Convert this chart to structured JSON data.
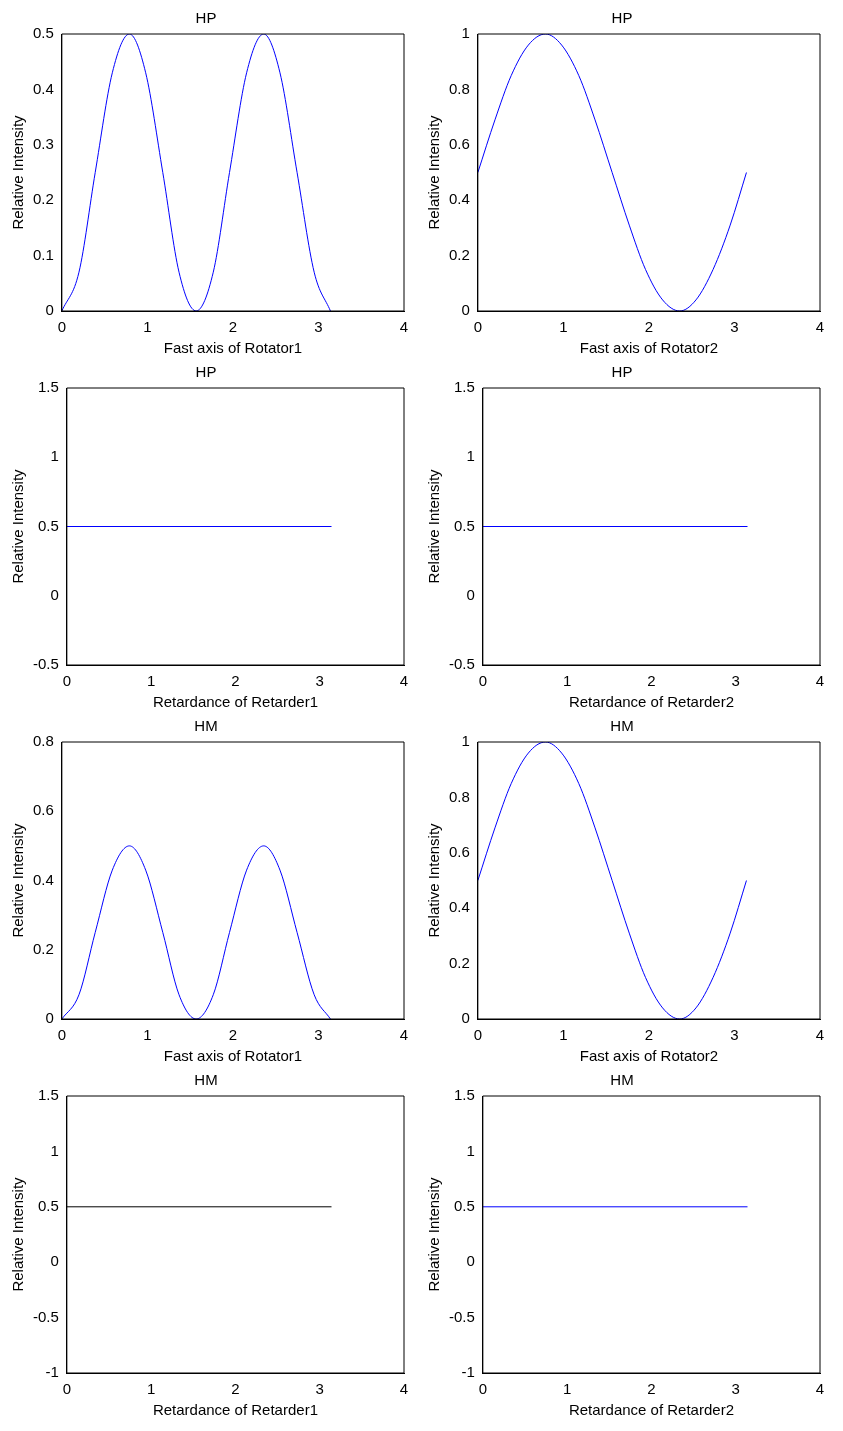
{
  "chart_data": [
    {
      "type": "line",
      "title": "HP",
      "xlabel": "Fast axis of Rotator1",
      "ylabel": "Relative Intensity",
      "x": [
        0,
        0.2,
        0.39,
        0.59,
        0.79,
        0.98,
        1.18,
        1.37,
        1.57,
        1.77,
        1.96,
        2.16,
        2.36,
        2.55,
        2.75,
        2.95,
        3.14
      ],
      "series": [
        {
          "color": "#0000ff",
          "values": [
            0,
            0.07,
            0.25,
            0.43,
            0.5,
            0.43,
            0.25,
            0.07,
            0,
            0.07,
            0.25,
            0.43,
            0.5,
            0.43,
            0.25,
            0.07,
            0
          ]
        }
      ],
      "xlim": [
        0,
        4
      ],
      "xticks": [
        0,
        1,
        2,
        3,
        4
      ],
      "ylim": [
        0,
        0.5
      ],
      "yticks": [
        0,
        0.1,
        0.2,
        0.3,
        0.4,
        0.5
      ]
    },
    {
      "type": "line",
      "title": "HP",
      "xlabel": "Fast axis of Rotator2",
      "ylabel": "Relative Intensity",
      "x": [
        0,
        0.2,
        0.39,
        0.59,
        0.79,
        0.98,
        1.18,
        1.37,
        1.57,
        1.77,
        1.96,
        2.16,
        2.36,
        2.55,
        2.75,
        2.95,
        3.14
      ],
      "series": [
        {
          "color": "#0000ff",
          "values": [
            0.5,
            0.69,
            0.85,
            0.96,
            1,
            0.96,
            0.85,
            0.69,
            0.5,
            0.31,
            0.15,
            0.04,
            0,
            0.04,
            0.15,
            0.31,
            0.5
          ]
        }
      ],
      "xlim": [
        0,
        4
      ],
      "xticks": [
        0,
        1,
        2,
        3,
        4
      ],
      "ylim": [
        0,
        1
      ],
      "yticks": [
        0,
        0.2,
        0.4,
        0.6,
        0.8,
        1
      ]
    },
    {
      "type": "line",
      "title": "HP",
      "xlabel": "Retardance of Retarder1",
      "ylabel": "Relative Intensity",
      "x": [
        0,
        3.14
      ],
      "series": [
        {
          "color": "#0000ff",
          "values": [
            0.5,
            0.5
          ]
        }
      ],
      "xlim": [
        0,
        4
      ],
      "xticks": [
        0,
        1,
        2,
        3,
        4
      ],
      "ylim": [
        -0.5,
        1.5
      ],
      "yticks": [
        -0.5,
        0,
        0.5,
        1,
        1.5
      ]
    },
    {
      "type": "line",
      "title": "HP",
      "xlabel": "Retardance of Retarder2",
      "ylabel": "Relative Intensity",
      "x": [
        0,
        3.14
      ],
      "series": [
        {
          "color": "#0000ff",
          "values": [
            0.5,
            0.5
          ]
        }
      ],
      "xlim": [
        0,
        4
      ],
      "xticks": [
        0,
        1,
        2,
        3,
        4
      ],
      "ylim": [
        -0.5,
        1.5
      ],
      "yticks": [
        -0.5,
        0,
        0.5,
        1,
        1.5
      ]
    },
    {
      "type": "line",
      "title": "HM",
      "xlabel": "Fast axis of Rotator1",
      "ylabel": "Relative Intensity",
      "x": [
        0,
        0.2,
        0.39,
        0.59,
        0.79,
        0.98,
        1.18,
        1.37,
        1.57,
        1.77,
        1.96,
        2.16,
        2.36,
        2.55,
        2.75,
        2.95,
        3.14
      ],
      "series": [
        {
          "color": "#0000ff",
          "values": [
            0,
            0.07,
            0.25,
            0.43,
            0.5,
            0.43,
            0.25,
            0.07,
            0,
            0.07,
            0.25,
            0.43,
            0.5,
            0.43,
            0.25,
            0.07,
            0
          ]
        }
      ],
      "xlim": [
        0,
        4
      ],
      "xticks": [
        0,
        1,
        2,
        3,
        4
      ],
      "ylim": [
        0,
        0.8
      ],
      "yticks": [
        0,
        0.2,
        0.4,
        0.6,
        0.8
      ]
    },
    {
      "type": "line",
      "title": "HM",
      "xlabel": "Fast axis of Rotator2",
      "ylabel": "Relative Intensity",
      "x": [
        0,
        0.2,
        0.39,
        0.59,
        0.79,
        0.98,
        1.18,
        1.37,
        1.57,
        1.77,
        1.96,
        2.16,
        2.36,
        2.55,
        2.75,
        2.95,
        3.14
      ],
      "series": [
        {
          "color": "#0000ff",
          "values": [
            0.5,
            0.69,
            0.85,
            0.96,
            1,
            0.96,
            0.85,
            0.69,
            0.5,
            0.31,
            0.15,
            0.04,
            0,
            0.04,
            0.15,
            0.31,
            0.5
          ]
        }
      ],
      "xlim": [
        0,
        4
      ],
      "xticks": [
        0,
        1,
        2,
        3,
        4
      ],
      "ylim": [
        0,
        1
      ],
      "yticks": [
        0,
        0.2,
        0.4,
        0.6,
        0.8,
        1
      ]
    },
    {
      "type": "line",
      "title": "HM",
      "xlabel": "Retardance of Retarder1",
      "ylabel": "Relative Intensity",
      "x": [
        0,
        3.14
      ],
      "series": [
        {
          "color": "#000000",
          "values": [
            0.5,
            0.5
          ]
        }
      ],
      "xlim": [
        0,
        4
      ],
      "xticks": [
        0,
        1,
        2,
        3,
        4
      ],
      "ylim": [
        -1,
        1.5
      ],
      "yticks": [
        -1,
        -0.5,
        0,
        0.5,
        1,
        1.5
      ]
    },
    {
      "type": "line",
      "title": "HM",
      "xlabel": "Retardance of Retarder2",
      "ylabel": "Relative Intensity",
      "x": [
        0,
        3.14
      ],
      "series": [
        {
          "color": "#0000ff",
          "values": [
            0.5,
            0.5
          ]
        }
      ],
      "xlim": [
        0,
        4
      ],
      "xticks": [
        0,
        1,
        2,
        3,
        4
      ],
      "ylim": [
        -1,
        1.5
      ],
      "yticks": [
        -1,
        -0.5,
        0,
        0.5,
        1,
        1.5
      ]
    }
  ]
}
